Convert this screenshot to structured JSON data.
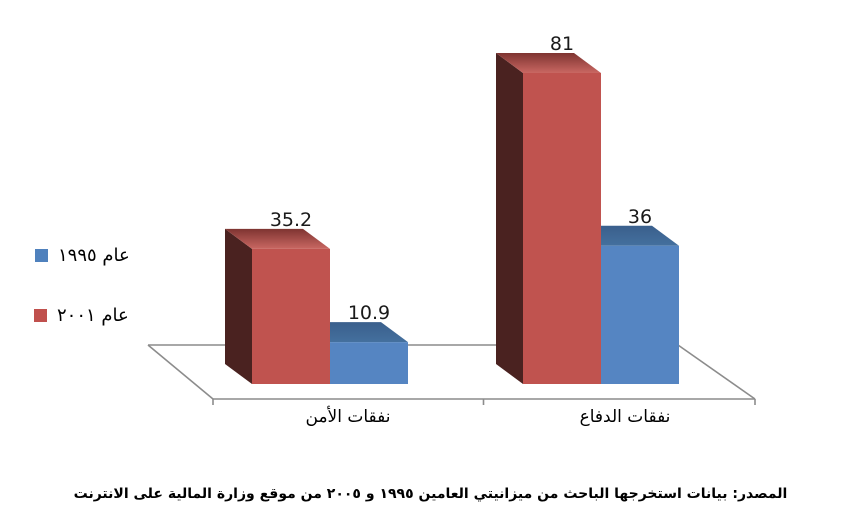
{
  "page": {
    "background": "#ffffff"
  },
  "legend": {
    "position": "middle-left",
    "items": [
      {
        "label": "عام ١٩٩٥",
        "color": "#4F81BD"
      },
      {
        "label": "عام ٢٠٠١",
        "color": "#C0504D"
      }
    ]
  },
  "source_note": "المصدر: بيانات استخرجها الباحث من ميزانيتي العامين ١٩٩٥ و ٢٠٠٥ من موقع وزارة المالية على الانترنت",
  "chart_data": {
    "type": "bar",
    "style": "3d-clustered-column",
    "direction": "rtl",
    "title": "",
    "xlabel": "",
    "ylabel": "",
    "value_axis_visible": false,
    "grid": false,
    "data_labels_visible": true,
    "legend_position": "middle-left",
    "floor_line_color": "#8C8C8C",
    "label_color": "#1a1a1a",
    "categories": [
      "نفقات الأمن",
      "نفقات الدفاع"
    ],
    "series": [
      {
        "name": "عام ١٩٩٥",
        "values": [
          10.9,
          36
        ],
        "color": "#4F81BD",
        "face_colors": {
          "front": "#5585C2",
          "top_back": "#3A5F8C",
          "top_front": "#44709E",
          "side": "#26486F"
        }
      },
      {
        "name": "عام ٢٠٠١",
        "values": [
          35.2,
          81
        ],
        "color": "#C0504D",
        "face_colors": {
          "front": "#C0534F",
          "top_back": "#7E3431",
          "top_front": "#C96762",
          "side": "#4A2220"
        }
      }
    ]
  }
}
